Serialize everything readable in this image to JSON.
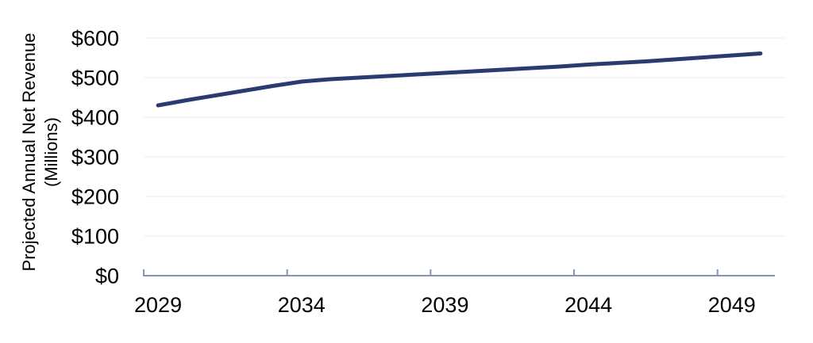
{
  "chart_data": {
    "type": "line",
    "title": "",
    "xlabel": "",
    "ylabel": "Projected Annual Net Revenue (Millions)",
    "ylabel_lines": [
      "Projected Annual Net Revenue",
      "(Millions)"
    ],
    "x": [
      2029,
      2030,
      2031,
      2032,
      2033,
      2034,
      2035,
      2036,
      2037,
      2038,
      2039,
      2040,
      2041,
      2042,
      2043,
      2044,
      2045,
      2046,
      2047,
      2048,
      2049,
      2050
    ],
    "values": [
      430,
      443,
      455,
      467,
      479,
      490,
      496,
      500,
      504,
      508,
      512,
      516,
      520,
      524,
      528,
      533,
      537,
      541,
      546,
      551,
      556,
      561
    ],
    "x_tick_years": [
      2029,
      2034,
      2039,
      2044,
      2049
    ],
    "x_tick_labels": [
      "2029",
      "2034",
      "2039",
      "2044",
      "2049"
    ],
    "y_ticks": [
      {
        "label": "$0",
        "value": 0
      },
      {
        "label": "$100",
        "value": 100
      },
      {
        "label": "$200",
        "value": 200
      },
      {
        "label": "$300",
        "value": 300
      },
      {
        "label": "$400",
        "value": 400
      },
      {
        "label": "$500",
        "value": 500
      },
      {
        "label": "$600",
        "value": 600
      }
    ],
    "ylim": [
      0,
      600
    ],
    "grid": "horizontal",
    "legend": "none",
    "colors": {
      "line": "#2b3a6f",
      "axis": "#8692ba",
      "gridline": "#f2f2f2",
      "text": "#000000",
      "background": "#ffffff"
    }
  }
}
